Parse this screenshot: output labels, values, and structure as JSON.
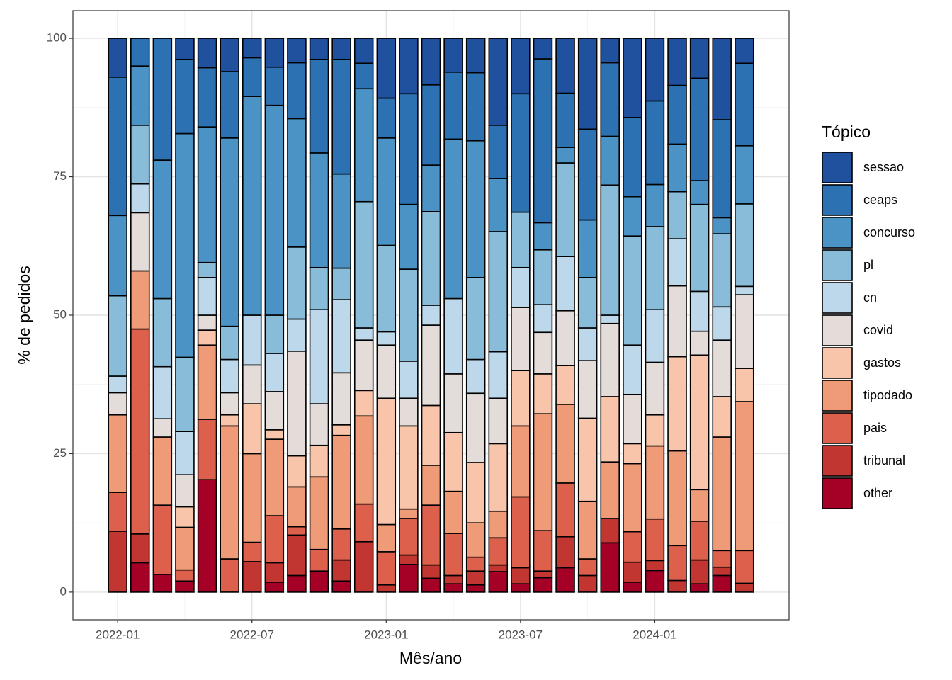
{
  "chart_data": {
    "type": "stacked-bar",
    "x_label": "Mês/ano",
    "y_label": "% de pedidos",
    "legend_title": "Tópico",
    "x": [
      "2022-01",
      "2022-02",
      "2022-03",
      "2022-04",
      "2022-05",
      "2022-06",
      "2022-07",
      "2022-08",
      "2022-09",
      "2022-10",
      "2022-11",
      "2022-12",
      "2023-01",
      "2023-02",
      "2023-03",
      "2023-04",
      "2023-05",
      "2023-06",
      "2023-07",
      "2023-08",
      "2023-09",
      "2023-10",
      "2023-11",
      "2023-12",
      "2024-01",
      "2024-02",
      "2024-03",
      "2024-04",
      "2024-05"
    ],
    "xlim": [
      "2021-11",
      "2024-07"
    ],
    "xticks": [
      "2022-01",
      "2022-07",
      "2023-01",
      "2023-07",
      "2024-01"
    ],
    "ylim": [
      -5,
      105
    ],
    "yticks": [
      0,
      25,
      50,
      75,
      100
    ],
    "grid": true,
    "legend": "right",
    "series": [
      {
        "name": "other",
        "color": "#a50026",
        "values": [
          0,
          5.3,
          3.2,
          2,
          20.3,
          0,
          0,
          1.8,
          3,
          3.8,
          2,
          0,
          0,
          5,
          2.5,
          1.5,
          1.3,
          3.7,
          1.5,
          2.6,
          4.4,
          0,
          8.9,
          1.8,
          3.9,
          0,
          1.5,
          3,
          0
        ]
      },
      {
        "name": "tribunal",
        "color": "#c13631",
        "values": [
          11,
          5.2,
          0,
          0,
          0,
          0,
          5.5,
          3.5,
          7.3,
          0,
          3.8,
          9.1,
          1.3,
          1.7,
          2.4,
          1.5,
          2.5,
          1.2,
          2.9,
          1.2,
          5.6,
          3,
          4.4,
          3.6,
          1.8,
          2.1,
          4.3,
          1.5,
          1.6
        ]
      },
      {
        "name": "pais",
        "color": "#dc604c",
        "values": [
          7,
          37,
          12.5,
          2,
          10.9,
          6,
          3.5,
          8.5,
          1.5,
          3.9,
          5.6,
          6.8,
          6,
          6.6,
          10.8,
          7.6,
          2.5,
          4.9,
          12.8,
          7.3,
          9.7,
          3,
          0,
          5.5,
          7.5,
          6.3,
          7,
          3,
          5.9
        ]
      },
      {
        "name": "tipodado",
        "color": "#ef9b78",
        "values": [
          14,
          10.5,
          12.3,
          7.7,
          13.4,
          24,
          16,
          13.8,
          7.2,
          13.1,
          16.9,
          15.9,
          4.9,
          1.7,
          7.2,
          7.6,
          6.2,
          4.8,
          12.8,
          21.1,
          14.2,
          10.4,
          10.2,
          12.3,
          13.2,
          17.1,
          5.7,
          20.5,
          26.9
        ]
      },
      {
        "name": "gastos",
        "color": "#f8c5aa",
        "values": [
          0,
          0,
          0,
          3.7,
          2.7,
          2,
          9,
          1.7,
          5.6,
          5.7,
          1.9,
          4.6,
          22.8,
          15,
          10.8,
          10.6,
          10.9,
          12.2,
          10,
          7.2,
          7,
          15,
          11.8,
          3.6,
          5.6,
          17,
          24.3,
          7.3,
          6
        ]
      },
      {
        "name": "covid",
        "color": "#e4dcd8",
        "values": [
          4,
          10.5,
          3.3,
          5.8,
          2.7,
          4,
          7,
          6.9,
          18.9,
          7.5,
          9.4,
          9.1,
          9.6,
          5,
          14.5,
          10.6,
          12.5,
          8.2,
          11.4,
          7.5,
          9.9,
          10.4,
          13.2,
          8.9,
          9.5,
          12.8,
          4.3,
          10.2,
          13.3
        ]
      },
      {
        "name": "cn",
        "color": "#bdd8ea",
        "values": [
          3,
          5.2,
          9.4,
          7.8,
          6.8,
          6,
          9,
          6.9,
          5.8,
          17,
          13.2,
          2.2,
          2.4,
          6.7,
          3.6,
          13.6,
          6.1,
          8.4,
          7.2,
          5,
          9.8,
          5.9,
          1.5,
          8.9,
          9.5,
          8.5,
          7.2,
          6,
          1.5
        ]
      },
      {
        "name": "pl",
        "color": "#88bcd9",
        "values": [
          14.5,
          10.6,
          12.3,
          13.4,
          2.7,
          6,
          0,
          6.9,
          13,
          7.6,
          5.7,
          22.8,
          15.6,
          16.6,
          16.9,
          0,
          14.8,
          21.7,
          10,
          9.9,
          16.9,
          9.1,
          23.5,
          19.7,
          15,
          8.5,
          15.7,
          13.2,
          14.9
        ]
      },
      {
        "name": "concurso",
        "color": "#4c93c5",
        "values": [
          14.5,
          10.7,
          25,
          40.4,
          24.5,
          34,
          39.5,
          37.9,
          23.2,
          20.7,
          17,
          20.4,
          19.4,
          11.7,
          8.4,
          28.8,
          24.7,
          9.6,
          0,
          4.9,
          2.8,
          10.4,
          8.8,
          7.1,
          7.6,
          8.6,
          4.3,
          2.9,
          10.5
        ]
      },
      {
        "name": "ceaps",
        "color": "#2c71b1",
        "values": [
          25,
          5,
          22,
          13.4,
          10.7,
          12,
          7,
          6.9,
          10.1,
          16.9,
          20.7,
          4.6,
          7.2,
          20,
          14.5,
          12.1,
          12.3,
          9.6,
          21.4,
          29.6,
          9.8,
          16.4,
          13.3,
          14.3,
          15.1,
          10.6,
          18.5,
          17.7,
          14.9
        ]
      },
      {
        "name": "sessao",
        "color": "#1f519f",
        "values": [
          7,
          0,
          0,
          3.8,
          5.3,
          6,
          3.5,
          5.2,
          4.4,
          3.8,
          3.8,
          4.5,
          10.8,
          10,
          8.4,
          6.1,
          6.2,
          15.7,
          10,
          3.7,
          9.9,
          16.4,
          4.4,
          14.3,
          11.3,
          8.5,
          7.2,
          14.7,
          4.5
        ]
      }
    ]
  }
}
